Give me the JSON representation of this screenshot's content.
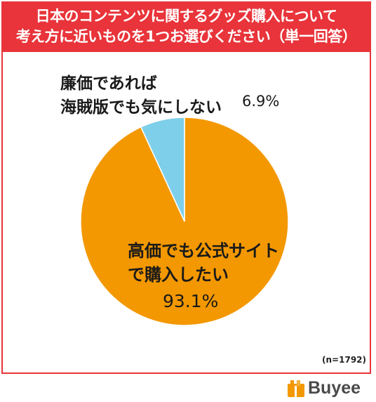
{
  "header": {
    "line1": "日本のコンテンツに関するグッズ購入について",
    "line2": "考え方に近いものを1つお選びください（単一回答）"
  },
  "chart_data": {
    "type": "pie",
    "slices": [
      {
        "label_lines": [
          "高価でも公式サイト",
          "で購入したい"
        ],
        "value": 93.1,
        "value_text": "93.1%",
        "color": "#f39800"
      },
      {
        "label_lines": [
          "廉価であれば",
          "海賊版でも気にしない"
        ],
        "value": 6.9,
        "value_text": "6.9%",
        "color": "#7ecfea"
      }
    ]
  },
  "note": "(n=1792)",
  "brand": {
    "name": "Buyee",
    "color": "#f39800"
  },
  "colors": {
    "accent": "#e8343a"
  }
}
